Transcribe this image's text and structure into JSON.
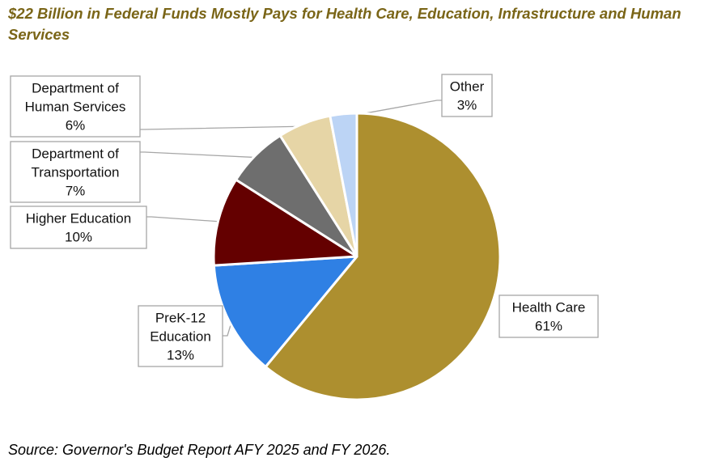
{
  "chart_data": {
    "type": "pie",
    "title": "$22 Billion in Federal Funds Mostly Pays for Health Care, Education, Infrastructure and Human Services",
    "source": "Source: Governor's Budget Report AFY 2025 and FY 2026.",
    "slices": [
      {
        "label": "Health Care",
        "label_lines": [
          "Health Care",
          "61%"
        ],
        "value": 61,
        "color": "#ad8f2f"
      },
      {
        "label": "PreK-12 Education",
        "label_lines": [
          "PreK-12",
          "Education",
          "13%"
        ],
        "value": 13,
        "color": "#2f80e4"
      },
      {
        "label": "Higher Education",
        "label_lines": [
          "Higher Education",
          "10%"
        ],
        "value": 10,
        "color": "#640000"
      },
      {
        "label": "Department of Transportation",
        "label_lines": [
          "Department of",
          "Transportation",
          "7%"
        ],
        "value": 7,
        "color": "#6e6e6e"
      },
      {
        "label": "Department of Human Services",
        "label_lines": [
          "Department of",
          "Human Services",
          "6%"
        ],
        "value": 6,
        "color": "#e6d5a6"
      },
      {
        "label": "Other",
        "label_lines": [
          "Other",
          "3%"
        ],
        "value": 3,
        "color": "#bcd4f5"
      }
    ],
    "start_angle_deg": 0,
    "direction": "clockwise",
    "legend": "none",
    "label_style": "callout boxes with leader lines"
  }
}
